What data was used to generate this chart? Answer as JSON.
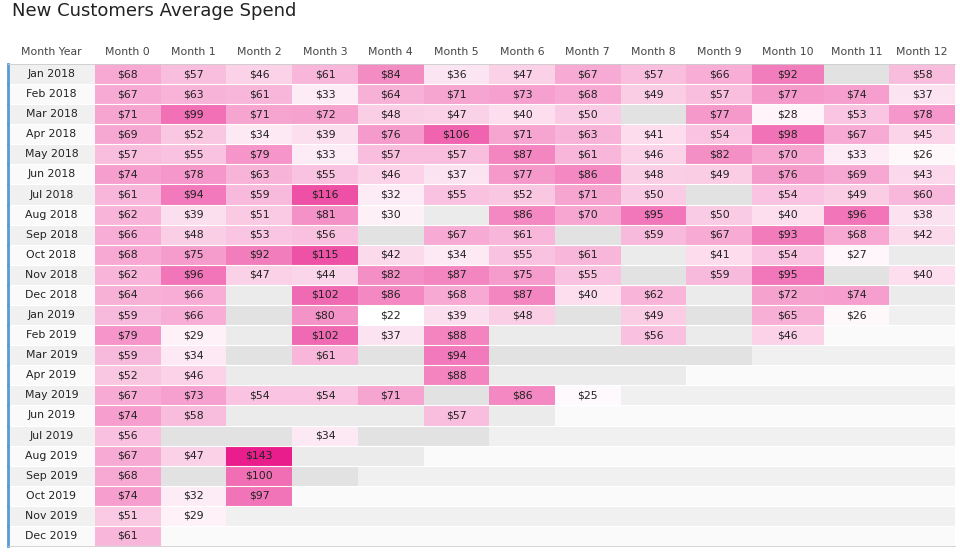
{
  "title": "New Customers Average Spend",
  "col_headers": [
    "Month Year",
    "Month 0",
    "Month 1",
    "Month 2",
    "Month 3",
    "Month 4",
    "Month 5",
    "Month 6",
    "Month 7",
    "Month 8",
    "Month 9",
    "Month 10",
    "Month 11",
    "Month 12"
  ],
  "rows": [
    {
      "label": "Jan 2018",
      "values": [
        68,
        57,
        46,
        61,
        84,
        36,
        47,
        67,
        57,
        66,
        92,
        null,
        58
      ]
    },
    {
      "label": "Feb 2018",
      "values": [
        67,
        63,
        61,
        33,
        64,
        71,
        73,
        68,
        49,
        57,
        77,
        74,
        37
      ]
    },
    {
      "label": "Mar 2018",
      "values": [
        71,
        99,
        71,
        72,
        48,
        47,
        40,
        50,
        null,
        77,
        28,
        53,
        78
      ]
    },
    {
      "label": "Apr 2018",
      "values": [
        69,
        52,
        34,
        39,
        76,
        106,
        71,
        63,
        41,
        54,
        98,
        67,
        45
      ]
    },
    {
      "label": "May 2018",
      "values": [
        57,
        55,
        79,
        33,
        57,
        57,
        87,
        61,
        46,
        82,
        70,
        33,
        26
      ]
    },
    {
      "label": "Jun 2018",
      "values": [
        74,
        78,
        63,
        55,
        46,
        37,
        77,
        86,
        48,
        49,
        76,
        69,
        43
      ]
    },
    {
      "label": "Jul 2018",
      "values": [
        61,
        94,
        59,
        116,
        32,
        55,
        52,
        71,
        50,
        null,
        54,
        49,
        60
      ]
    },
    {
      "label": "Aug 2018",
      "values": [
        62,
        39,
        51,
        81,
        30,
        null,
        86,
        70,
        95,
        50,
        40,
        96,
        38
      ]
    },
    {
      "label": "Sep 2018",
      "values": [
        66,
        48,
        53,
        56,
        null,
        67,
        61,
        null,
        59,
        67,
        93,
        68,
        42
      ]
    },
    {
      "label": "Oct 2018",
      "values": [
        68,
        75,
        92,
        115,
        42,
        34,
        55,
        61,
        null,
        41,
        54,
        27,
        null
      ]
    },
    {
      "label": "Nov 2018",
      "values": [
        62,
        96,
        47,
        44,
        82,
        87,
        75,
        55,
        null,
        59,
        95,
        null,
        40
      ]
    },
    {
      "label": "Dec 2018",
      "values": [
        64,
        66,
        null,
        102,
        86,
        68,
        87,
        40,
        62,
        null,
        72,
        74,
        null
      ]
    },
    {
      "label": "Jan 2019",
      "values": [
        59,
        66,
        null,
        80,
        22,
        39,
        48,
        null,
        49,
        null,
        65,
        26,
        null
      ]
    },
    {
      "label": "Feb 2019",
      "values": [
        79,
        29,
        null,
        102,
        37,
        88,
        null,
        null,
        56,
        null,
        46,
        null,
        null
      ]
    },
    {
      "label": "Mar 2019",
      "values": [
        59,
        34,
        null,
        61,
        null,
        94,
        null,
        null,
        null,
        null,
        null,
        null,
        null
      ]
    },
    {
      "label": "Apr 2019",
      "values": [
        52,
        46,
        null,
        null,
        null,
        88,
        null,
        null,
        null,
        null,
        null,
        null,
        null
      ]
    },
    {
      "label": "May 2019",
      "values": [
        67,
        73,
        54,
        54,
        71,
        null,
        86,
        25,
        null,
        null,
        null,
        null,
        null
      ]
    },
    {
      "label": "Jun 2019",
      "values": [
        74,
        58,
        null,
        null,
        null,
        57,
        null,
        null,
        null,
        null,
        null,
        null,
        null
      ]
    },
    {
      "label": "Jul 2019",
      "values": [
        56,
        null,
        null,
        34,
        null,
        null,
        null,
        null,
        null,
        null,
        null,
        null,
        null
      ]
    },
    {
      "label": "Aug 2019",
      "values": [
        67,
        47,
        143,
        null,
        null,
        null,
        null,
        null,
        null,
        null,
        null,
        null,
        null
      ]
    },
    {
      "label": "Sep 2019",
      "values": [
        68,
        null,
        100,
        null,
        null,
        null,
        null,
        null,
        null,
        null,
        null,
        null,
        null
      ]
    },
    {
      "label": "Oct 2019",
      "values": [
        74,
        32,
        97,
        null,
        null,
        null,
        null,
        null,
        null,
        null,
        null,
        null,
        null
      ]
    },
    {
      "label": "Nov 2019",
      "values": [
        51,
        29,
        null,
        null,
        null,
        null,
        null,
        null,
        null,
        null,
        null,
        null,
        null
      ]
    },
    {
      "label": "Dec 2019",
      "values": [
        61,
        null,
        null,
        null,
        null,
        null,
        null,
        null,
        null,
        null,
        null,
        null,
        null
      ]
    }
  ],
  "bg_color": "#ffffff",
  "title_color": "#222222",
  "header_text_color": "#444444",
  "cell_text_color": "#222222",
  "empty_cell_color_odd": "#e2e2e2",
  "empty_cell_color_even": "#ebebeb",
  "color_min": "#ffffff",
  "color_max": "#e91e8c",
  "row_bg_odd": "#f0f0f0",
  "row_bg_even": "#fafafa",
  "border_color": "#5b9bd5",
  "title_fontsize": 13,
  "header_fontsize": 7.8,
  "cell_fontsize": 7.8,
  "label_fontsize": 7.8
}
